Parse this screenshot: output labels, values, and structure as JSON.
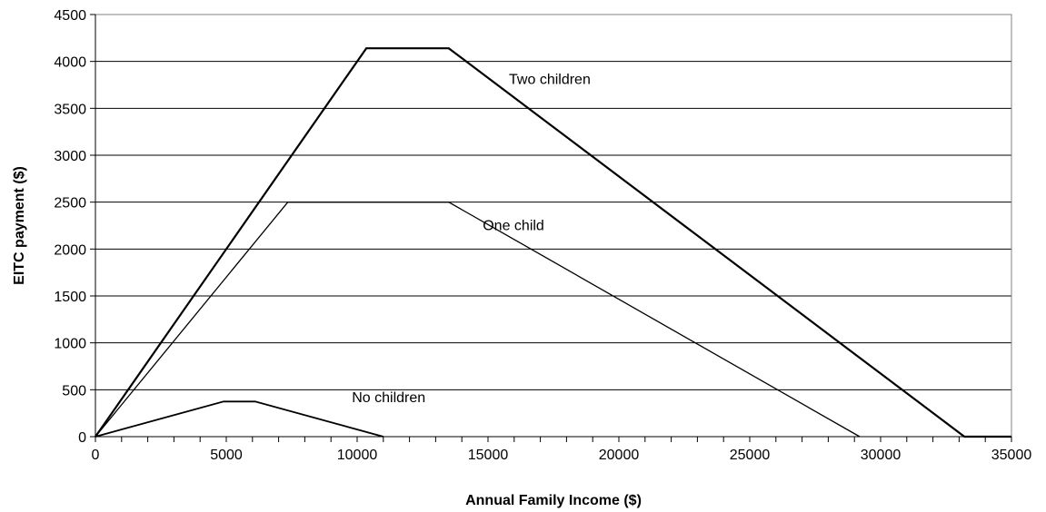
{
  "chart_data": {
    "type": "line",
    "title": "",
    "xlabel": "Annual Family Income ($)",
    "ylabel": "EITC payment ($)",
    "xlim": [
      0,
      35000
    ],
    "ylim": [
      0,
      4500
    ],
    "xticks": [
      0,
      5000,
      10000,
      15000,
      20000,
      25000,
      30000,
      35000
    ],
    "yticks": [
      0,
      500,
      1000,
      1500,
      2000,
      2500,
      3000,
      3500,
      4000,
      4500
    ],
    "x_minor_step": 1000,
    "grid": "horizontal",
    "legend": "none (series labeled directly on chart)",
    "line_color": "#000000",
    "series": [
      {
        "name": "Two children",
        "points": [
          [
            0,
            0
          ],
          [
            10350,
            4140
          ],
          [
            13500,
            4140
          ],
          [
            33200,
            0
          ],
          [
            35000,
            0
          ]
        ]
      },
      {
        "name": "One child",
        "points": [
          [
            0,
            0
          ],
          [
            7350,
            2500
          ],
          [
            13500,
            2500
          ],
          [
            29200,
            0
          ]
        ]
      },
      {
        "name": "No children",
        "points": [
          [
            0,
            0
          ],
          [
            4900,
            375
          ],
          [
            6100,
            375
          ],
          [
            11000,
            0
          ]
        ]
      }
    ]
  }
}
